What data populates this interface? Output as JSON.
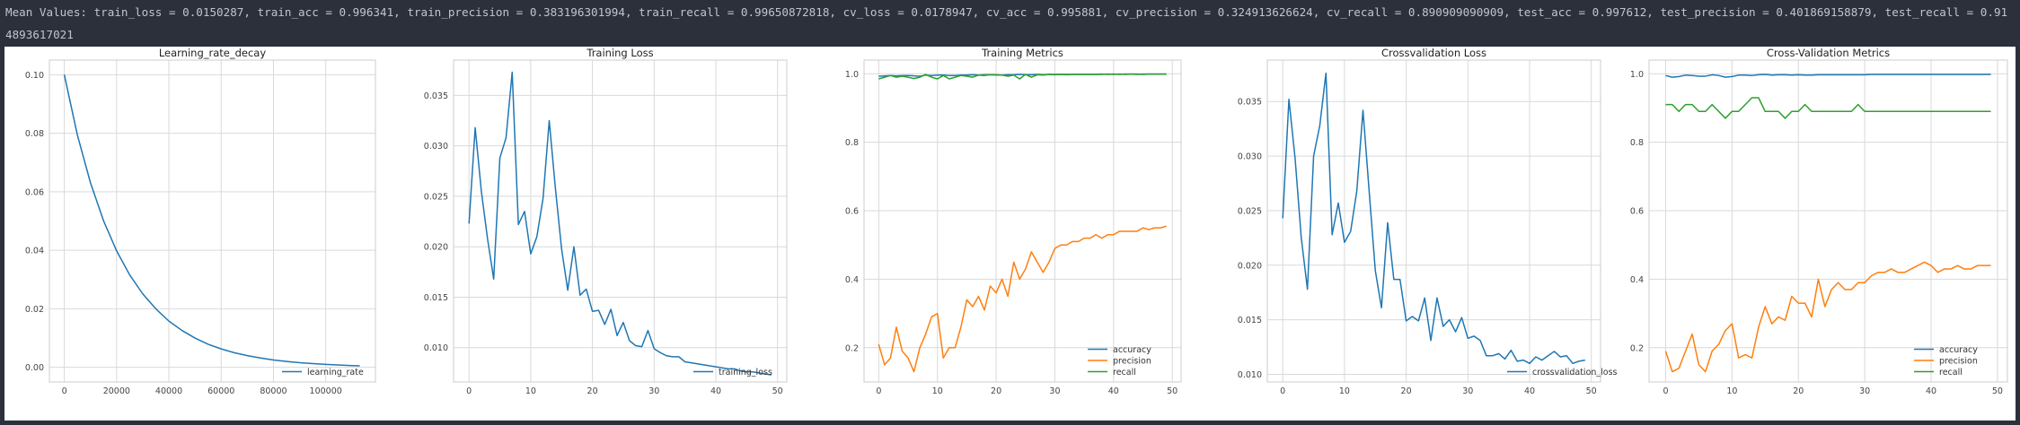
{
  "summary_text": "Mean Values: train_loss = 0.0150287, train_acc = 0.996341, train_precision = 0.383196301994, train_recall = 0.99650872818, cv_loss = 0.0178947, cv_acc = 0.995881, cv_precision = 0.324913626624, cv_recall = 0.890909090909, test_acc = 0.997612, test_precision = 0.401869158879, test_recall = 0.914893617021",
  "colors": {
    "background": "#2b303b",
    "text": "#c0c5ce",
    "panel": "#ffffff",
    "blue": "#1f77b4",
    "orange": "#ff7f0e",
    "green": "#2ca02c",
    "grid": "#d9d9d9",
    "spine": "#cccccc"
  },
  "chart_data": [
    {
      "type": "line",
      "title": "Learning_rate_decay",
      "xlabel": "",
      "ylabel": "",
      "xlim": [
        -5700,
        119000
      ],
      "ylim": [
        -0.005,
        0.105
      ],
      "xticks": [
        0,
        20000,
        40000,
        60000,
        80000,
        100000
      ],
      "yticks": [
        0.0,
        0.02,
        0.04,
        0.06,
        0.08,
        0.1
      ],
      "ytick_format": "2",
      "grid": true,
      "legend": "lower right",
      "series": [
        {
          "name": "learning_rate",
          "color": "#1f77b4",
          "x": [
            0,
            5000,
            10000,
            15000,
            20000,
            25000,
            30000,
            35000,
            40000,
            45000,
            50000,
            55000,
            60000,
            65000,
            70000,
            75000,
            80000,
            85000,
            90000,
            95000,
            100000,
            105000,
            110000,
            113000
          ],
          "y": [
            0.1,
            0.0794,
            0.0631,
            0.0501,
            0.0398,
            0.0316,
            0.0251,
            0.02,
            0.0158,
            0.0126,
            0.01,
            0.0079,
            0.0063,
            0.005,
            0.004,
            0.0032,
            0.0025,
            0.002,
            0.0016,
            0.0013,
            0.001,
            0.0008,
            0.0006,
            0.0005
          ]
        }
      ]
    },
    {
      "type": "line",
      "title": "Training Loss",
      "xlabel": "",
      "ylabel": "",
      "xlim": [
        -2.5,
        51.5
      ],
      "ylim": [
        0.0066,
        0.0385
      ],
      "xticks": [
        0,
        10,
        20,
        30,
        40,
        50
      ],
      "yticks": [
        0.01,
        0.015,
        0.02,
        0.025,
        0.03,
        0.035
      ],
      "ytick_format": "3",
      "grid": true,
      "legend": "lower right",
      "series": [
        {
          "name": "training_loss",
          "color": "#1f77b4",
          "x": [
            0,
            1,
            2,
            3,
            4,
            5,
            6,
            7,
            8,
            9,
            10,
            11,
            12,
            13,
            14,
            15,
            16,
            17,
            18,
            19,
            20,
            21,
            22,
            23,
            24,
            25,
            26,
            27,
            28,
            29,
            30,
            31,
            32,
            33,
            34,
            35,
            36,
            37,
            38,
            39,
            40,
            41,
            42,
            43,
            44,
            45,
            46,
            47,
            48,
            49
          ],
          "y": [
            0.0223,
            0.0318,
            0.0255,
            0.0208,
            0.0168,
            0.0288,
            0.0308,
            0.0373,
            0.0222,
            0.0235,
            0.0193,
            0.021,
            0.0248,
            0.0325,
            0.0258,
            0.0198,
            0.0157,
            0.02,
            0.0152,
            0.0158,
            0.0136,
            0.0137,
            0.0123,
            0.0138,
            0.0112,
            0.0125,
            0.0107,
            0.0102,
            0.0101,
            0.0117,
            0.0099,
            0.0095,
            0.0092,
            0.0091,
            0.0091,
            0.0086,
            0.0085,
            0.0084,
            0.0083,
            0.0082,
            0.0081,
            0.008,
            0.0079,
            0.0079,
            0.0077,
            0.0076,
            0.0076,
            0.0075,
            0.0074,
            0.0073
          ]
        }
      ]
    },
    {
      "type": "line",
      "title": "Training Metrics",
      "xlabel": "",
      "ylabel": "",
      "xlim": [
        -2.5,
        51.5
      ],
      "ylim": [
        0.1,
        1.04
      ],
      "xticks": [
        0,
        10,
        20,
        30,
        40,
        50
      ],
      "yticks": [
        0.2,
        0.4,
        0.6,
        0.8,
        1.0
      ],
      "ytick_format": "1",
      "grid": true,
      "legend": "lower right",
      "series": [
        {
          "name": "accuracy",
          "color": "#1f77b4",
          "x": [
            0,
            1,
            2,
            3,
            4,
            5,
            6,
            7,
            8,
            9,
            10,
            11,
            12,
            13,
            14,
            15,
            16,
            17,
            18,
            19,
            20,
            21,
            22,
            23,
            24,
            25,
            26,
            27,
            28,
            29,
            30,
            31,
            32,
            33,
            34,
            35,
            36,
            37,
            38,
            39,
            40,
            41,
            42,
            43,
            44,
            45,
            46,
            47,
            48,
            49
          ],
          "y": [
            0.993,
            0.994,
            0.995,
            0.994,
            0.995,
            0.995,
            0.994,
            0.993,
            0.996,
            0.995,
            0.996,
            0.996,
            0.995,
            0.995,
            0.996,
            0.996,
            0.997,
            0.996,
            0.997,
            0.997,
            0.997,
            0.996,
            0.997,
            0.997,
            0.998,
            0.997,
            0.997,
            0.998,
            0.997,
            0.998,
            0.998,
            0.998,
            0.998,
            0.998,
            0.998,
            0.998,
            0.998,
            0.998,
            0.999,
            0.998,
            0.999,
            0.998,
            0.999,
            0.999,
            0.999,
            0.998,
            0.999,
            0.999,
            0.999,
            0.999
          ]
        },
        {
          "name": "precision",
          "color": "#ff7f0e",
          "x": [
            0,
            1,
            2,
            3,
            4,
            5,
            6,
            7,
            8,
            9,
            10,
            11,
            12,
            13,
            14,
            15,
            16,
            17,
            18,
            19,
            20,
            21,
            22,
            23,
            24,
            25,
            26,
            27,
            28,
            29,
            30,
            31,
            32,
            33,
            34,
            35,
            36,
            37,
            38,
            39,
            40,
            41,
            42,
            43,
            44,
            45,
            46,
            47,
            48,
            49
          ],
          "y": [
            0.21,
            0.15,
            0.17,
            0.26,
            0.19,
            0.17,
            0.13,
            0.2,
            0.24,
            0.29,
            0.3,
            0.17,
            0.2,
            0.2,
            0.26,
            0.34,
            0.32,
            0.35,
            0.31,
            0.38,
            0.36,
            0.4,
            0.35,
            0.45,
            0.4,
            0.43,
            0.48,
            0.45,
            0.42,
            0.45,
            0.49,
            0.5,
            0.5,
            0.51,
            0.51,
            0.52,
            0.52,
            0.53,
            0.52,
            0.53,
            0.53,
            0.54,
            0.54,
            0.54,
            0.54,
            0.55,
            0.545,
            0.55,
            0.55,
            0.555
          ]
        },
        {
          "name": "recall",
          "color": "#2ca02c",
          "x": [
            0,
            1,
            2,
            3,
            4,
            5,
            6,
            7,
            8,
            9,
            10,
            11,
            12,
            13,
            14,
            15,
            16,
            17,
            18,
            19,
            20,
            21,
            22,
            23,
            24,
            25,
            26,
            27,
            28,
            29,
            30,
            31,
            32,
            33,
            34,
            35,
            36,
            37,
            38,
            39,
            40,
            41,
            42,
            43,
            44,
            45,
            46,
            47,
            48,
            49
          ],
          "y": [
            0.985,
            0.99,
            0.995,
            0.99,
            0.993,
            0.99,
            0.986,
            0.99,
            0.998,
            0.99,
            0.985,
            0.995,
            0.985,
            0.99,
            0.995,
            0.993,
            0.99,
            0.996,
            0.995,
            0.997,
            0.996,
            0.996,
            0.993,
            0.996,
            0.985,
            0.998,
            0.99,
            0.997,
            0.996,
            0.998,
            0.997,
            0.998,
            0.997,
            0.998,
            0.998,
            0.998,
            0.998,
            0.998,
            0.998,
            0.999,
            0.998,
            0.999,
            0.998,
            0.999,
            0.998,
            0.999,
            0.999,
            0.999,
            0.999,
            0.999
          ]
        }
      ]
    },
    {
      "type": "line",
      "title": "Crossvalidation Loss",
      "xlabel": "",
      "ylabel": "",
      "xlim": [
        -2.5,
        51.5
      ],
      "ylim": [
        0.0093,
        0.0388
      ],
      "xticks": [
        0,
        10,
        20,
        30,
        40,
        50
      ],
      "yticks": [
        0.01,
        0.015,
        0.02,
        0.025,
        0.03,
        0.035
      ],
      "ytick_format": "3",
      "grid": true,
      "legend": "lower right",
      "series": [
        {
          "name": "crossvalidation_loss",
          "color": "#1f77b4",
          "x": [
            0,
            1,
            2,
            3,
            4,
            5,
            6,
            7,
            8,
            9,
            10,
            11,
            12,
            13,
            14,
            15,
            16,
            17,
            18,
            19,
            20,
            21,
            22,
            23,
            24,
            25,
            26,
            27,
            28,
            29,
            30,
            31,
            32,
            33,
            34,
            35,
            36,
            37,
            38,
            39,
            40,
            41,
            42,
            43,
            44,
            45,
            46,
            47,
            48,
            49
          ],
          "y": [
            0.0243,
            0.0352,
            0.0298,
            0.0225,
            0.0178,
            0.03,
            0.0328,
            0.0376,
            0.0228,
            0.0257,
            0.0221,
            0.0231,
            0.0268,
            0.0342,
            0.0268,
            0.0195,
            0.0161,
            0.0239,
            0.0187,
            0.0187,
            0.0149,
            0.0153,
            0.0149,
            0.017,
            0.0131,
            0.017,
            0.0144,
            0.015,
            0.0139,
            0.0152,
            0.0133,
            0.0135,
            0.0131,
            0.0117,
            0.0117,
            0.0119,
            0.0114,
            0.0122,
            0.0112,
            0.0113,
            0.011,
            0.0116,
            0.0113,
            0.0117,
            0.0121,
            0.0116,
            0.0117,
            0.011,
            0.0112,
            0.0113
          ]
        }
      ]
    },
    {
      "type": "line",
      "title": "Cross-Validation Metrics",
      "xlabel": "",
      "ylabel": "",
      "xlim": [
        -2.5,
        51.5
      ],
      "ylim": [
        0.1,
        1.04
      ],
      "xticks": [
        0,
        10,
        20,
        30,
        40,
        50
      ],
      "yticks": [
        0.2,
        0.4,
        0.6,
        0.8,
        1.0
      ],
      "ytick_format": "1",
      "grid": true,
      "legend": "lower right",
      "series": [
        {
          "name": "accuracy",
          "color": "#1f77b4",
          "x": [
            0,
            1,
            2,
            3,
            4,
            5,
            6,
            7,
            8,
            9,
            10,
            11,
            12,
            13,
            14,
            15,
            16,
            17,
            18,
            19,
            20,
            21,
            22,
            23,
            24,
            25,
            26,
            27,
            28,
            29,
            30,
            31,
            32,
            33,
            34,
            35,
            36,
            37,
            38,
            39,
            40,
            41,
            42,
            43,
            44,
            45,
            46,
            47,
            48,
            49
          ],
          "y": [
            0.995,
            0.99,
            0.992,
            0.996,
            0.995,
            0.993,
            0.993,
            0.997,
            0.995,
            0.99,
            0.992,
            0.996,
            0.996,
            0.995,
            0.997,
            0.998,
            0.996,
            0.997,
            0.997,
            0.996,
            0.997,
            0.996,
            0.996,
            0.997,
            0.997,
            0.997,
            0.997,
            0.997,
            0.997,
            0.997,
            0.997,
            0.998,
            0.998,
            0.998,
            0.998,
            0.998,
            0.998,
            0.998,
            0.998,
            0.998,
            0.998,
            0.998,
            0.998,
            0.998,
            0.998,
            0.998,
            0.998,
            0.998,
            0.998,
            0.998
          ]
        },
        {
          "name": "precision",
          "color": "#ff7f0e",
          "x": [
            0,
            1,
            2,
            3,
            4,
            5,
            6,
            7,
            8,
            9,
            10,
            11,
            12,
            13,
            14,
            15,
            16,
            17,
            18,
            19,
            20,
            21,
            22,
            23,
            24,
            25,
            26,
            27,
            28,
            29,
            30,
            31,
            32,
            33,
            34,
            35,
            36,
            37,
            38,
            39,
            40,
            41,
            42,
            43,
            44,
            45,
            46,
            47,
            48,
            49
          ],
          "y": [
            0.19,
            0.13,
            0.14,
            0.19,
            0.24,
            0.15,
            0.13,
            0.19,
            0.21,
            0.25,
            0.27,
            0.17,
            0.18,
            0.17,
            0.26,
            0.32,
            0.27,
            0.29,
            0.28,
            0.35,
            0.33,
            0.33,
            0.29,
            0.4,
            0.32,
            0.37,
            0.39,
            0.37,
            0.37,
            0.39,
            0.39,
            0.41,
            0.42,
            0.42,
            0.43,
            0.42,
            0.42,
            0.43,
            0.44,
            0.45,
            0.44,
            0.42,
            0.43,
            0.43,
            0.44,
            0.43,
            0.43,
            0.44,
            0.44,
            0.44
          ]
        },
        {
          "name": "recall",
          "color": "#2ca02c",
          "x": [
            0,
            1,
            2,
            3,
            4,
            5,
            6,
            7,
            8,
            9,
            10,
            11,
            12,
            13,
            14,
            15,
            16,
            17,
            18,
            19,
            20,
            21,
            22,
            23,
            24,
            25,
            26,
            27,
            28,
            29,
            30,
            31,
            32,
            33,
            34,
            35,
            36,
            37,
            38,
            39,
            40,
            41,
            42,
            43,
            44,
            45,
            46,
            47,
            48,
            49
          ],
          "y": [
            0.91,
            0.91,
            0.89,
            0.91,
            0.91,
            0.89,
            0.89,
            0.91,
            0.89,
            0.87,
            0.89,
            0.89,
            0.91,
            0.93,
            0.93,
            0.89,
            0.89,
            0.89,
            0.87,
            0.89,
            0.89,
            0.91,
            0.89,
            0.89,
            0.89,
            0.89,
            0.89,
            0.89,
            0.89,
            0.91,
            0.89,
            0.89,
            0.89,
            0.89,
            0.89,
            0.89,
            0.89,
            0.89,
            0.89,
            0.89,
            0.89,
            0.89,
            0.89,
            0.89,
            0.89,
            0.89,
            0.89,
            0.89,
            0.89,
            0.89
          ]
        }
      ]
    }
  ]
}
